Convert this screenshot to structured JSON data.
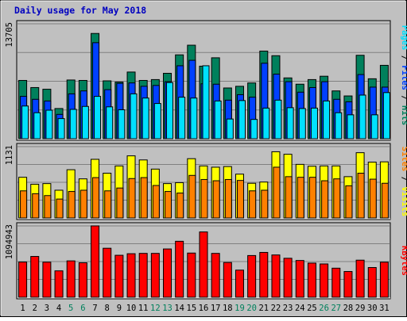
{
  "chart_data": {
    "type": "bar",
    "title": "Daily usage for May 2018",
    "categories": [
      "1",
      "2",
      "3",
      "4",
      "5",
      "6",
      "7",
      "8",
      "9",
      "10",
      "11",
      "12",
      "13",
      "14",
      "15",
      "16",
      "17",
      "18",
      "19",
      "20",
      "21",
      "22",
      "23",
      "24",
      "25",
      "26",
      "27",
      "28",
      "29",
      "30",
      "31"
    ],
    "weekend_days": [
      "5",
      "6",
      "12",
      "13",
      "19",
      "20",
      "26",
      "27"
    ],
    "panels": [
      {
        "name": "hits-files-pages",
        "y_max_label": "13705",
        "ylim": [
          0,
          13705
        ],
        "legend": [
          "Pages",
          "Files",
          "Hits"
        ],
        "legend_position": "right",
        "series": [
          {
            "name": "Hits",
            "color": "#00805c",
            "values": [
              6950,
              6100,
              5900,
              3600,
              7000,
              6950,
              12550,
              6900,
              6750,
              7950,
              6950,
              7050,
              7800,
              10000,
              11150,
              8650,
              9650,
              6050,
              6250,
              6650,
              10450,
              9900,
              7250,
              6500,
              7050,
              7450,
              5700,
              5100,
              9950,
              7150,
              8750
            ]
          },
          {
            "name": "Files",
            "color": "#0040ff",
            "values": [
              5050,
              4700,
              4500,
              2900,
              5350,
              5700,
              11450,
              5850,
              6600,
              6650,
              6250,
              6350,
              6800,
              8700,
              9350,
              6550,
              6500,
              4600,
              5250,
              4950,
              9000,
              7700,
              6800,
              5550,
              6100,
              6800,
              4700,
              4400,
              7650,
              6150,
              6150
            ]
          },
          {
            "name": "Pages",
            "color": "#00e0ff",
            "values": [
              3900,
              3100,
              3400,
              2400,
              3500,
              3850,
              5050,
              3800,
              3450,
              5350,
              4850,
              4200,
              6700,
              4950,
              4850,
              8700,
              4500,
              2350,
              4550,
              2300,
              3650,
              4600,
              3700,
              3600,
              3650,
              4500,
              3100,
              2850,
              5200,
              2850,
              5500
            ]
          }
        ]
      },
      {
        "name": "visits-sites",
        "y_max_label": "1131",
        "ylim": [
          0,
          1131
        ],
        "legend": [
          "Sites",
          "Visits"
        ],
        "legend_position": "right",
        "series": [
          {
            "name": "Visits",
            "color": "#ffff00",
            "values": [
              645,
              535,
              545,
              440,
              765,
              620,
              930,
              710,
              825,
              985,
              920,
              775,
              545,
              560,
              940,
              825,
              805,
              815,
              695,
              550,
              570,
              1050,
              1010,
              850,
              820,
              825,
              825,
              655,
              1035,
              885,
              890
            ]
          },
          {
            "name": "Sites",
            "color": "#ff8000",
            "values": [
              430,
              385,
              355,
              300,
              420,
              440,
              640,
              430,
              475,
              625,
              640,
              515,
              420,
              395,
              675,
              610,
              590,
              610,
              595,
              430,
              440,
              805,
              655,
              645,
              645,
              590,
              620,
              510,
              710,
              615,
              550
            ]
          }
        ]
      },
      {
        "name": "kbytes",
        "y_max_label": "1094943",
        "ylim": [
          0,
          1094943
        ],
        "legend": [
          "KBytes"
        ],
        "legend_position": "right",
        "series": [
          {
            "name": "KBytes",
            "color": "#ff0000",
            "values": [
              540000,
              626000,
              538000,
              405000,
              558000,
              529000,
              1094943,
              752000,
              644000,
              668000,
              673000,
              673000,
              741000,
              859000,
              678000,
              1002000,
              673000,
              533000,
              416000,
              640000,
              688000,
              649000,
              598000,
              564000,
              524000,
              511000,
              446000,
              395000,
              569000,
              456000,
              538000
            ]
          }
        ]
      }
    ],
    "grid": true
  }
}
